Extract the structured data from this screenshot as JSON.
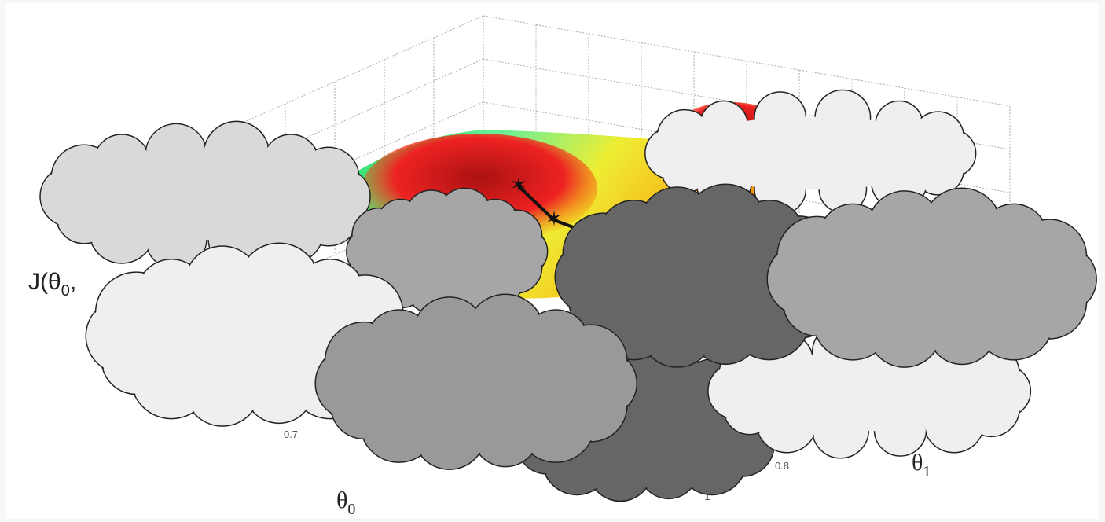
{
  "figure": {
    "z_label": {
      "text": "J(θ",
      "sub": "0",
      "tail": ","
    },
    "x_label": {
      "text": "θ",
      "sub": "0"
    },
    "y_label": {
      "text": "θ",
      "sub": "1"
    },
    "tick_labels": [
      "0.7",
      "0.8",
      "1"
    ]
  }
}
